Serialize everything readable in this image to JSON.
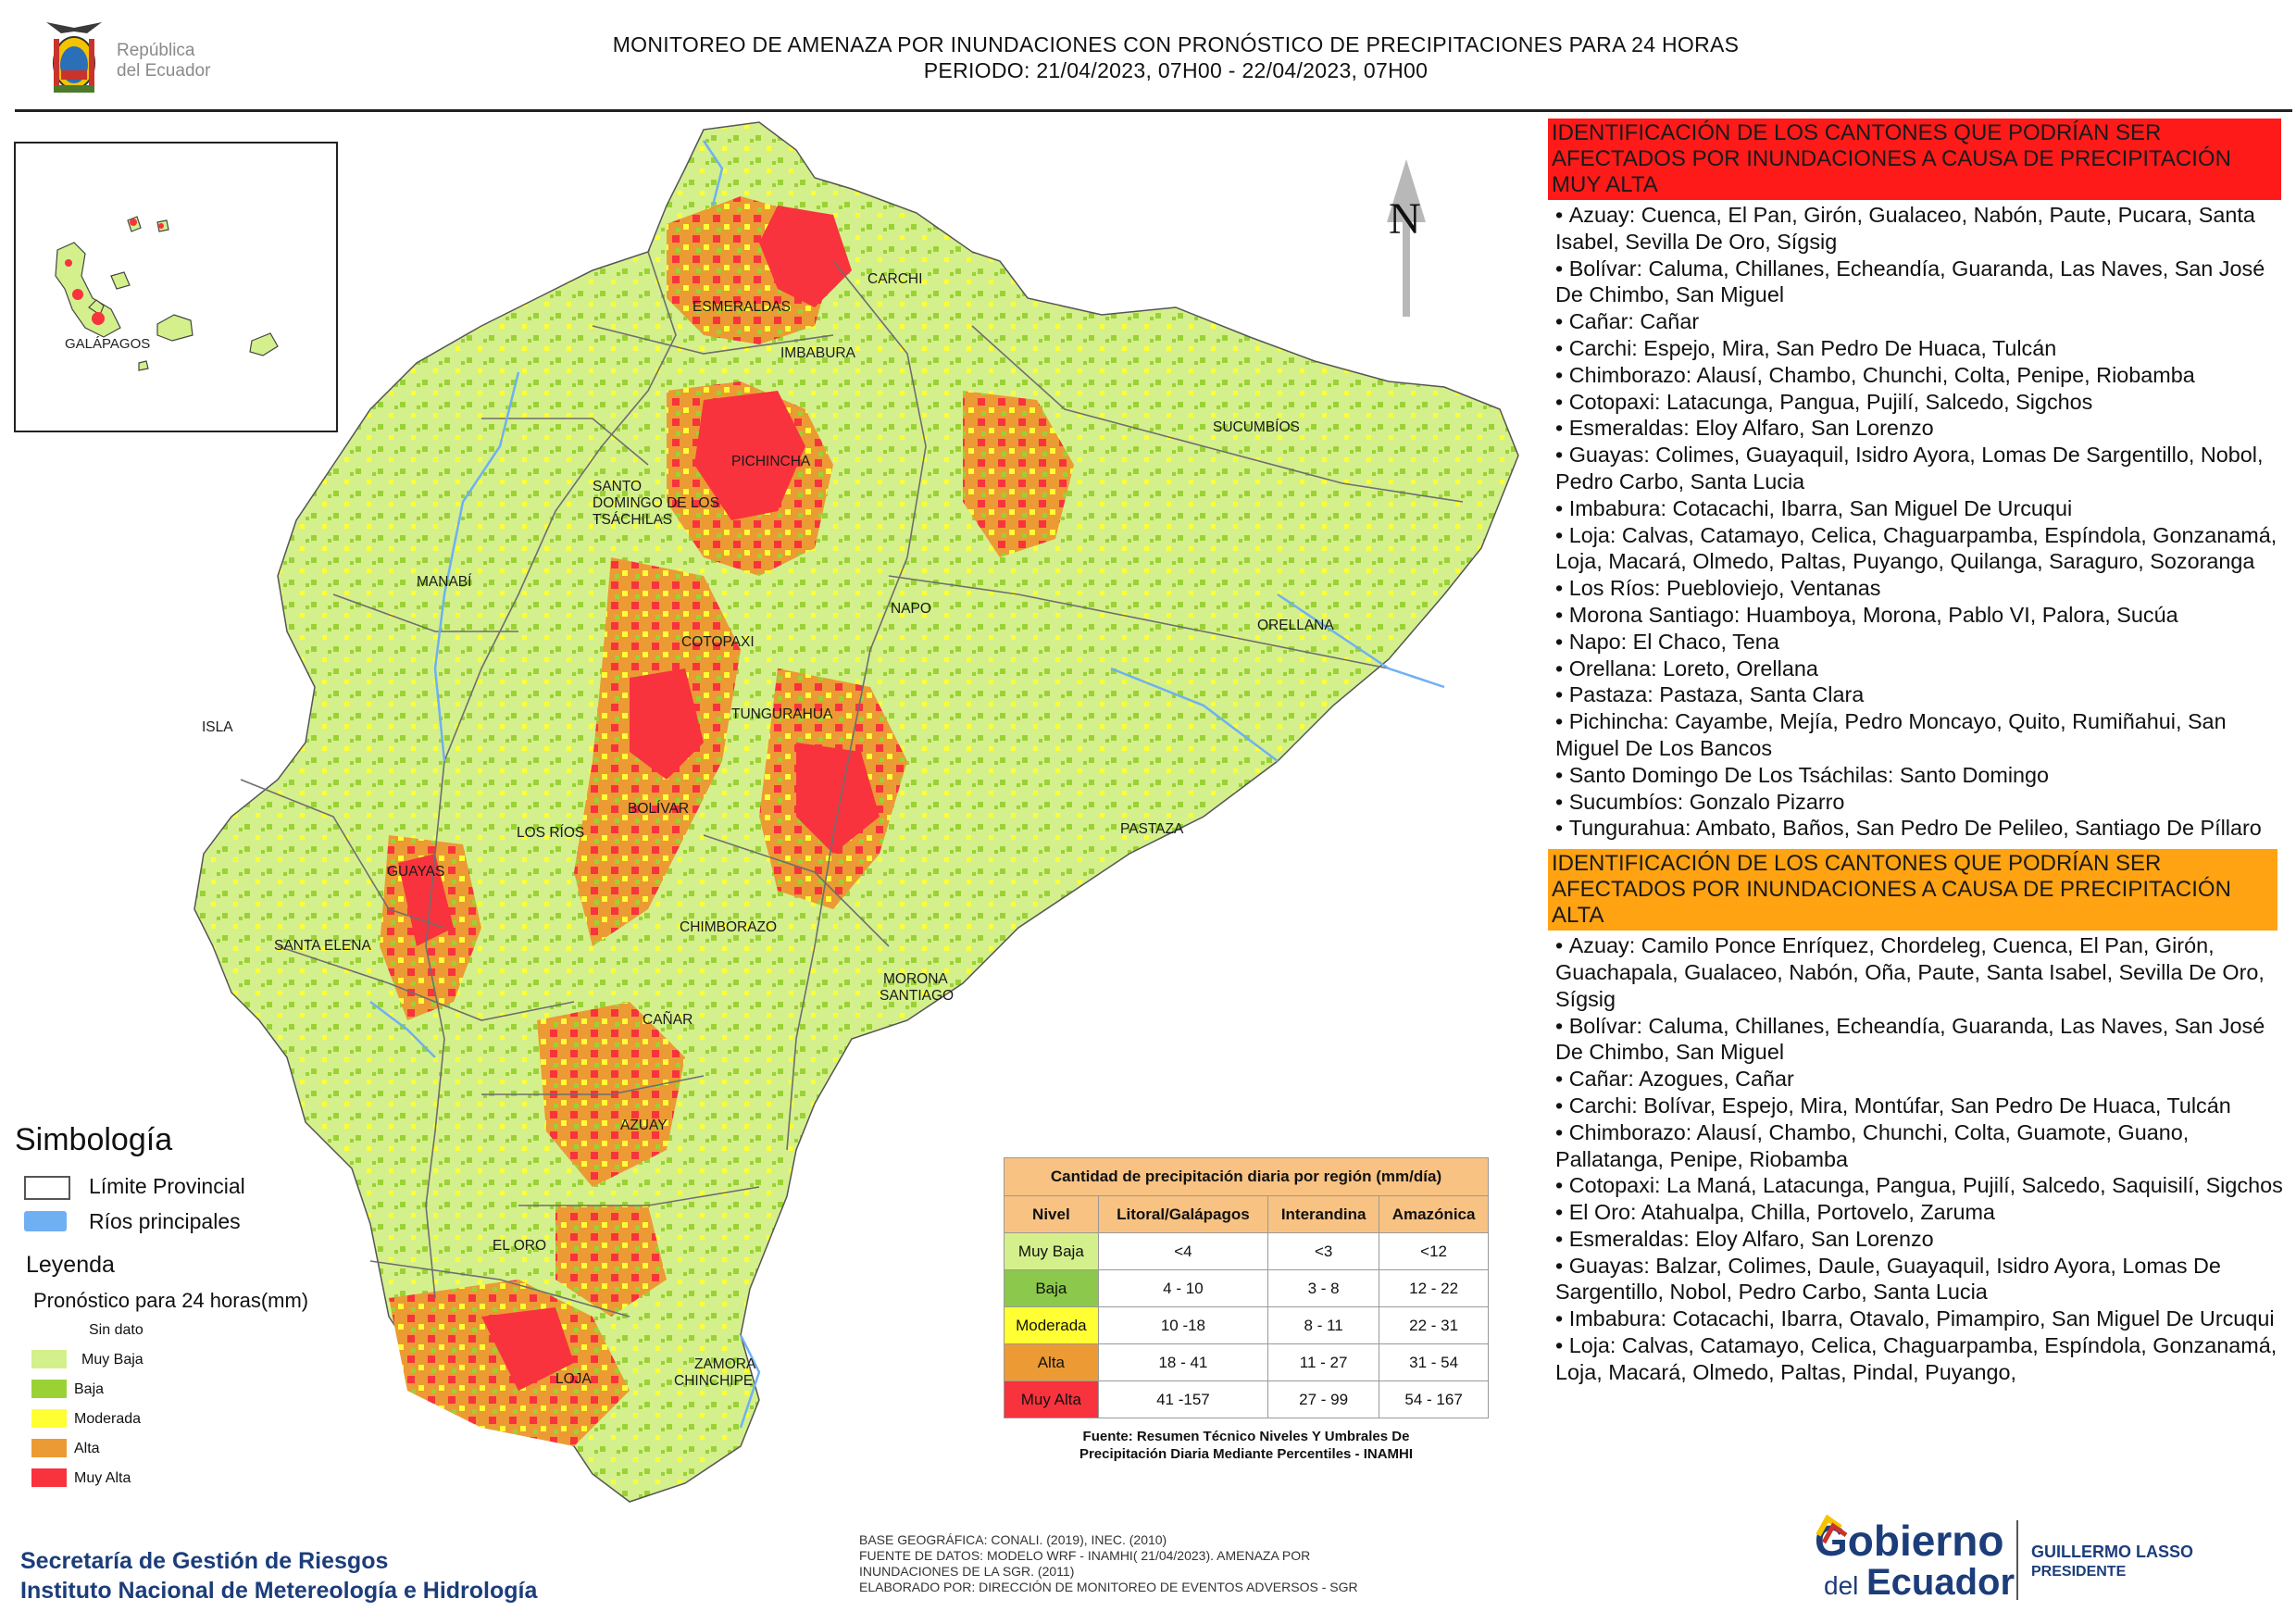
{
  "header": {
    "logo_text_1": "República",
    "logo_text_2": "del Ecuador",
    "title_line_1": "MONITOREO DE AMENAZA POR INUNDACIONES  CON PRONÓSTICO DE  PRECIPITACIONES PARA 24 HORAS",
    "title_line_2": "PERIODO: 21/04/2023, 07H00 - 22/04/2023, 07H00"
  },
  "colors": {
    "muy_baja": "#d4f08c",
    "baja": "#9ad235",
    "moderada": "#ffff33",
    "alta": "#ec9a34",
    "muy_alta": "#f8333d",
    "rios": "#6fb0f3",
    "panel_red": "#ff1a1a",
    "panel_orange": "#ffa313",
    "table_header": "#f8c283"
  },
  "map": {
    "north_label": "N",
    "inset_label": "GALÁPAGOS",
    "province_labels": [
      "ESMERALDAS",
      "CARCHI",
      "IMBABURA",
      "SUCUMBÍOS",
      "PICHINCHA",
      "SANTO",
      "DOMINGO DE LOS",
      "TSÁCHILAS",
      "MANABÍ",
      "NAPO",
      "ORELLANA",
      "COTOPAXI",
      "ISLA",
      "TUNGURAHUA",
      "BOLÍVAR",
      "LOS RÍOS",
      "PASTAZA",
      "GUAYAS",
      "CHIMBORAZO",
      "SANTA ELENA",
      "MORONA",
      "SANTIAGO",
      "CAÑAR",
      "AZUAY",
      "EL ORO",
      "ZAMORA",
      "CHINCHIPE",
      "LOJA"
    ]
  },
  "legend": {
    "simbologia": "Simbología",
    "limite": "Límite Provincial",
    "rios": "Ríos principales",
    "leyenda": "Leyenda",
    "pronostico": "Pronóstico para 24 horas(mm)",
    "classes": [
      "Sin dato",
      "Muy Baja",
      "Baja",
      "Moderada",
      "Alta",
      "Muy Alta"
    ]
  },
  "table": {
    "title": "Cantidad de precipitación diaria por región (mm/día)",
    "headers": [
      "Nivel",
      "Litoral/Galápagos",
      "Interandina",
      "Amazónica"
    ],
    "rows": [
      [
        "Muy Baja",
        "<4",
        "<3",
        "<12"
      ],
      [
        "Baja",
        "4 - 10",
        "3 - 8",
        "12 - 22"
      ],
      [
        "Moderada",
        "10 -18",
        "8 - 11",
        "22 - 31"
      ],
      [
        "Alta",
        "18 - 41",
        "11 - 27",
        "31 - 54"
      ],
      [
        "Muy Alta",
        "41 -157",
        "27 - 99",
        "54 - 167"
      ]
    ],
    "source_1": "Fuente: Resumen Técnico Niveles Y Umbrales De",
    "source_2": "Precipitación Diaria Mediante Percentiles - INAMHI"
  },
  "panel": {
    "muy_alta_title": "IDENTIFICACIÓN DE LOS CANTONES QUE PODRÍAN SER AFECTADOS POR INUNDACIONES  A CAUSA DE PRECIPITACIÓN MUY ALTA",
    "muy_alta_items": [
      "Azuay: Cuenca, El Pan, Girón, Gualaceo, Nabón, Paute, Pucara, Santa Isabel, Sevilla De Oro, Sígsig",
      "Bolívar: Caluma, Chillanes, Echeandía, Guaranda, Las Naves, San José De Chimbo, San Miguel",
      "Cañar: Cañar",
      "Carchi: Espejo, Mira, San Pedro De Huaca, Tulcán",
      "Chimborazo: Alausí, Chambo, Chunchi, Colta, Penipe, Riobamba",
      "Cotopaxi: Latacunga, Pangua, Pujilí, Salcedo, Sigchos",
      "Esmeraldas: Eloy Alfaro, San Lorenzo",
      "Guayas: Colimes, Guayaquil, Isidro Ayora, Lomas De Sargentillo, Nobol, Pedro Carbo, Santa Lucia",
      "Imbabura: Cotacachi, Ibarra, San Miguel De Urcuqui",
      "Loja: Calvas, Catamayo, Celica, Chaguarpamba, Espíndola, Gonzanamá, Loja, Macará, Olmedo, Paltas, Puyango, Quilanga, Saraguro, Sozoranga",
      "Los Ríos: Puebloviejo, Ventanas",
      "Morona Santiago: Huamboya, Morona, Pablo VI, Palora, Sucúa",
      "Napo: El Chaco, Tena",
      "Orellana: Loreto, Orellana",
      "Pastaza: Pastaza, Santa Clara",
      "Pichincha: Cayambe, Mejía, Pedro Moncayo, Quito, Rumiñahui, San Miguel De Los Bancos",
      "Santo Domingo De Los Tsáchilas: Santo Domingo",
      "Sucumbíos: Gonzalo Pizarro",
      "Tungurahua: Ambato, Baños, San Pedro De Pelileo, Santiago De Píllaro"
    ],
    "alta_title": "IDENTIFICACIÓN DE LOS CANTONES QUE  PODRÍAN SER AFECTADOS POR INUNDACIONES  A CAUSA DE PRECIPITACIÓN ALTA",
    "alta_items": [
      "Azuay: Camilo Ponce Enríquez, Chordeleg, Cuenca, El Pan, Girón, Guachapala, Gualaceo, Nabón, Oña, Paute, Santa Isabel, Sevilla De Oro, Sígsig",
      "Bolívar: Caluma, Chillanes, Echeandía, Guaranda, Las Naves, San José De Chimbo, San Miguel",
      "Cañar: Azogues, Cañar",
      "Carchi: Bolívar, Espejo, Mira, Montúfar, San Pedro De Huaca, Tulcán",
      "Chimborazo: Alausí, Chambo, Chunchi, Colta, Guamote, Guano, Pallatanga, Penipe, Riobamba",
      "Cotopaxi: La Maná, Latacunga, Pangua, Pujilí, Salcedo, Saquisilí, Sigchos",
      "El Oro: Atahualpa, Chilla, Portovelo, Zaruma",
      "Esmeraldas: Eloy Alfaro, San Lorenzo",
      "Guayas: Balzar, Colimes, Daule, Guayaquil, Isidro Ayora, Lomas De Sargentillo, Nobol, Pedro Carbo, Santa Lucia",
      "Imbabura: Cotacachi, Ibarra, Otavalo, Pimampiro, San Miguel De Urcuqui",
      "Loja: Calvas, Catamayo, Celica, Chaguarpamba, Espíndola, Gonzanamá, Loja, Macará, Olmedo, Paltas, Pindal, Puyango,"
    ]
  },
  "footer": {
    "org_1": "Secretaría de Gestión de Riesgos",
    "org_2": "Instituto Nacional de Metereología e Hidrología",
    "base_1": "BASE GEOGRÁFICA: CONALI. (2019), INEC. (2010)",
    "base_2": "FUENTE DE DATOS: MODELO WRF - INAMHI( 21/04/2023).  AMENAZA POR",
    "base_3": "INUNDACIONES DE LA SGR. (2011)",
    "base_4": "ELABORADO POR: DIRECCIÓN DE MONITOREO DE EVENTOS ADVERSOS - SGR",
    "gob_1": "Gobierno",
    "gob_2": "del",
    "gob_3": "Ecuador",
    "pres_1": "GUILLERMO LASSO",
    "pres_2": "PRESIDENTE"
  }
}
